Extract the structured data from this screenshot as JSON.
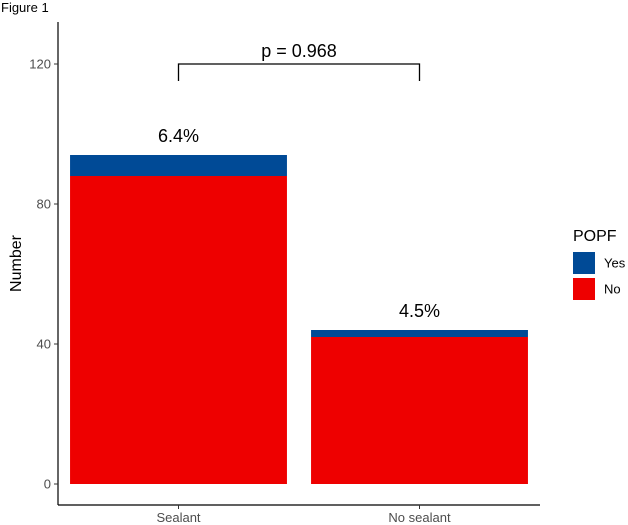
{
  "figure_label": "Figure 1",
  "chart_data": {
    "type": "bar",
    "stacked": true,
    "categories": [
      "Sealant",
      "No sealant"
    ],
    "series": [
      {
        "name": "No",
        "values": [
          88,
          42
        ],
        "color": "#EE0000"
      },
      {
        "name": "Yes",
        "values": [
          6,
          2
        ],
        "color": "#004A96"
      }
    ],
    "ylabel": "Number",
    "xlabel": "",
    "ylim": [
      0,
      130
    ],
    "yticks": [
      0,
      40,
      80,
      120
    ],
    "data_labels": [
      "6.4%",
      "4.5%"
    ],
    "annotation": "p = 0.968",
    "bracket_y": 120,
    "legend": {
      "title": "POPF",
      "position": "right",
      "entries": [
        "Yes",
        "No"
      ]
    },
    "grid": false
  }
}
